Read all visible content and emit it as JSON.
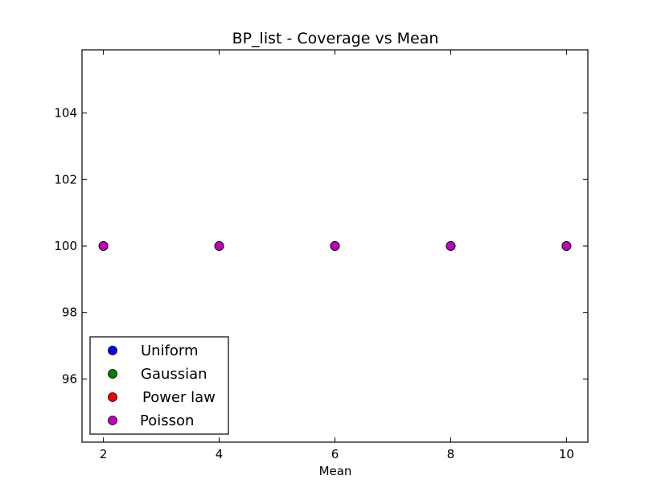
{
  "chart_data": {
    "type": "scatter",
    "title": "BP_list - Coverage vs Mean",
    "xlabel": "Mean",
    "ylabel": "",
    "xlim": [
      1.63,
      10.37
    ],
    "ylim": [
      94.1,
      105.9
    ],
    "xticks": [
      2,
      4,
      6,
      8,
      10
    ],
    "yticks": [
      96,
      98,
      100,
      102,
      104
    ],
    "legend_position": "lower-left",
    "series": [
      {
        "name": "Uniform",
        "color": "#0000ff",
        "x": [
          2,
          4,
          6,
          8,
          10
        ],
        "y": [
          100,
          100,
          100,
          100,
          100
        ]
      },
      {
        "name": "Gaussian",
        "color": "#008000",
        "x": [
          2,
          4,
          6,
          8,
          10
        ],
        "y": [
          100,
          100,
          100,
          100,
          100
        ]
      },
      {
        "name": "Power law",
        "color": "#ff0000",
        "x": [
          2,
          4,
          6,
          8,
          10
        ],
        "y": [
          100,
          100,
          100,
          100,
          100
        ]
      },
      {
        "name": "Poisson",
        "color": "#bf00bf",
        "x": [
          2,
          4,
          6,
          8,
          10
        ],
        "y": [
          100,
          100,
          100,
          100,
          100
        ]
      }
    ]
  }
}
